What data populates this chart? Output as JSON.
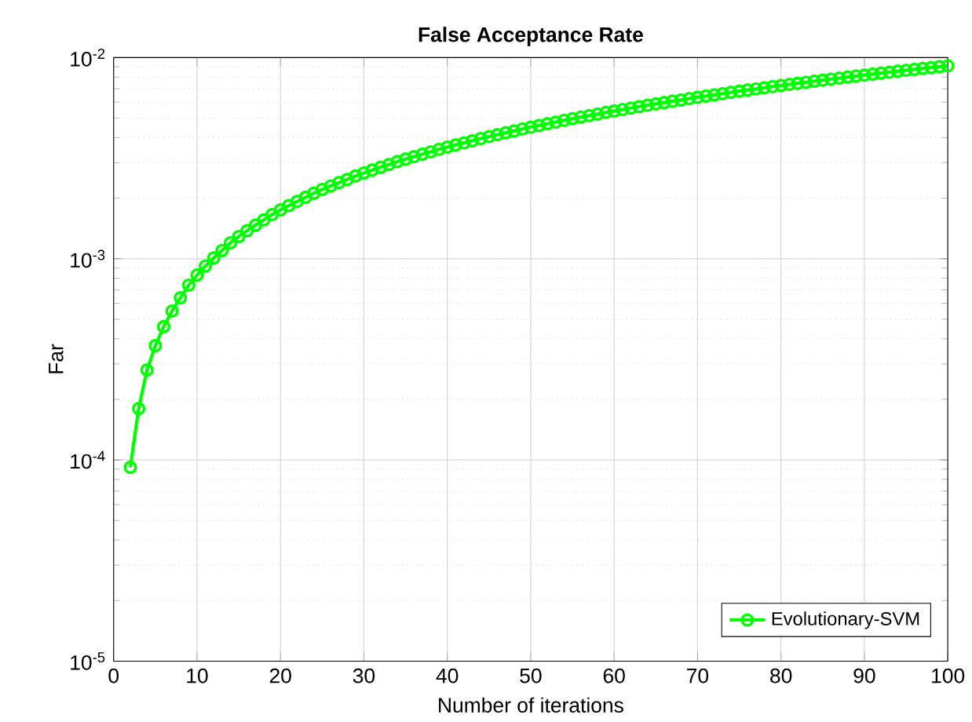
{
  "chart_data": {
    "type": "line",
    "title": "False Acceptance Rate",
    "xlabel": "Number of iterations",
    "ylabel": "Far",
    "log": "y",
    "grid": true,
    "legend": "bottom right",
    "marker": "circle",
    "line_style": "solid",
    "xlim": [
      0,
      100
    ],
    "xticks": [
      0,
      10,
      20,
      30,
      40,
      50,
      60,
      70,
      80,
      90,
      100
    ],
    "ylim": [
      1e-05,
      0.01
    ],
    "yticks": [
      {
        "value": 1e-05,
        "label": "10$^{-5}$"
      },
      {
        "value": 0.0001,
        "label": "10$^{-4}$"
      },
      {
        "value": 0.001,
        "label": "10$^{-3}$"
      },
      {
        "value": 0.01,
        "label": "10$^{-2}$"
      }
    ],
    "series": [
      {
        "name": "Evolutionary-SVM",
        "color": "#00ff00",
        "x": [
          2,
          3,
          4,
          5,
          6,
          7,
          8,
          9,
          10,
          11,
          12,
          13,
          14,
          15,
          16,
          17,
          18,
          19,
          20,
          21,
          22,
          23,
          24,
          25,
          26,
          27,
          28,
          29,
          30,
          31,
          32,
          33,
          34,
          35,
          36,
          37,
          38,
          39,
          40,
          41,
          42,
          43,
          44,
          45,
          46,
          47,
          48,
          49,
          50,
          51,
          52,
          53,
          54,
          55,
          56,
          57,
          58,
          59,
          60,
          61,
          62,
          63,
          64,
          65,
          66,
          67,
          68,
          69,
          70,
          71,
          72,
          73,
          74,
          75,
          76,
          77,
          78,
          79,
          80,
          81,
          82,
          83,
          84,
          85,
          86,
          87,
          88,
          89,
          90,
          91,
          92,
          93,
          94,
          95,
          96,
          97,
          98,
          99,
          100
        ],
        "values": [
          9.2e-05,
          0.00018,
          0.00028,
          0.00037,
          0.00046,
          0.00055,
          0.00064,
          0.00074,
          0.00083,
          0.00092,
          0.00101,
          0.0011,
          0.0012,
          0.00129,
          0.00138,
          0.00147,
          0.00156,
          0.00166,
          0.00175,
          0.00184,
          0.00193,
          0.00202,
          0.00212,
          0.00221,
          0.0023,
          0.00239,
          0.00248,
          0.00258,
          0.00267,
          0.00276,
          0.00285,
          0.00294,
          0.00304,
          0.00313,
          0.00322,
          0.00331,
          0.0034,
          0.0035,
          0.00359,
          0.00368,
          0.00377,
          0.00386,
          0.00396,
          0.00405,
          0.00414,
          0.00423,
          0.00432,
          0.00442,
          0.00451,
          0.0046,
          0.00469,
          0.00478,
          0.00488,
          0.00497,
          0.00506,
          0.00515,
          0.00524,
          0.00534,
          0.00543,
          0.00552,
          0.00561,
          0.0057,
          0.0058,
          0.00589,
          0.00598,
          0.00607,
          0.00616,
          0.00626,
          0.00635,
          0.00644,
          0.00653,
          0.00662,
          0.00672,
          0.00681,
          0.0069,
          0.00699,
          0.00708,
          0.00718,
          0.00727,
          0.00736,
          0.00745,
          0.00754,
          0.00764,
          0.00773,
          0.00782,
          0.00791,
          0.008,
          0.0081,
          0.00819,
          0.00828,
          0.00837,
          0.00846,
          0.00856,
          0.00865,
          0.00874,
          0.00883,
          0.00892,
          0.00902,
          0.00911
        ]
      }
    ]
  }
}
